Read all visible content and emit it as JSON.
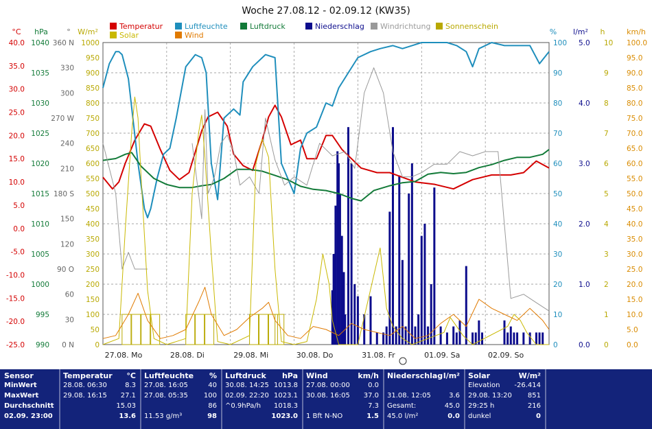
{
  "title": "Woche 27.08.12 - 02.09.12 (KW35)",
  "colors": {
    "temperature": "#d40000",
    "humidity": "#1e8ebc",
    "pressure": "#127a38",
    "rain": "#0c0c8c",
    "wind_dir": "#9a9a9a",
    "sunshine": "#b8a800",
    "solar": "#c9b800",
    "wind": "#e07a00"
  },
  "legend": [
    {
      "label": "Temperatur",
      "color": "#d40000"
    },
    {
      "label": "Luftfeuchte",
      "color": "#1e8ebc"
    },
    {
      "label": "Luftdruck",
      "color": "#127a38"
    },
    {
      "label": "Niederschlag",
      "color": "#0c0c8c"
    },
    {
      "label": "Windrichtung",
      "color": "#9a9a9a"
    },
    {
      "label": "Sonnenschein",
      "color": "#b8a800"
    },
    {
      "label": "Solar",
      "color": "#c9b800"
    },
    {
      "label": "Wind",
      "color": "#e07a00"
    }
  ],
  "axes": {
    "temp_unit": "°C",
    "pressure_unit": "hPa",
    "dir_unit": "°",
    "solar_unit": "W/m²",
    "hum_unit": "%",
    "rain_unit": "l/m²",
    "sun_unit": "h",
    "wind_unit": "km/h",
    "temp_ticks": [
      "40.0",
      "35.0",
      "30.0",
      "25.0",
      "20.0",
      "15.0",
      "10.0",
      "5.0",
      "0.0",
      "-5.0",
      "-10.0",
      "-15.0",
      "-20.0",
      "-25.0"
    ],
    "pressure_ticks": [
      "1040",
      "1035",
      "1030",
      "1025",
      "1020",
      "1015",
      "1010",
      "1005",
      "1000",
      "995",
      "990"
    ],
    "dir_ticks": [
      "360 N",
      "330",
      "300",
      "270 W",
      "240",
      "210",
      "180 S",
      "150",
      "120",
      "90 O",
      "60",
      "30",
      "0 N"
    ],
    "solar_ticks": [
      "1000",
      "950",
      "900",
      "850",
      "800",
      "750",
      "700",
      "650",
      "600",
      "550",
      "500",
      "450",
      "400",
      "350",
      "300",
      "250",
      "200",
      "150",
      "100",
      "50",
      "0"
    ],
    "hum_ticks": [
      "100",
      "90",
      "80",
      "70",
      "60",
      "50",
      "40",
      "30",
      "20",
      "10",
      "0"
    ],
    "rain_ticks": [
      "5.0",
      "4.0",
      "3.0",
      "2.0",
      "1.0",
      "0.0"
    ],
    "sun_ticks": [
      "10",
      "9",
      "8",
      "7",
      "6",
      "5",
      "4",
      "3",
      "2",
      "1",
      "0"
    ],
    "wind_ticks": [
      "100.0",
      "95.0",
      "90.0",
      "85.0",
      "80.0",
      "75.0",
      "70.0",
      "65.0",
      "60.0",
      "55.0",
      "50.0",
      "45.0",
      "40.0",
      "35.0",
      "30.0",
      "25.0",
      "20.0",
      "15.0",
      "10.0",
      "5.0",
      "0.0"
    ],
    "day_labels": [
      "27.08.  Mo",
      "28.08.  Di",
      "29.08.  Mi",
      "30.08.  Do",
      "31.08.  Fr",
      "01.09.  Sa",
      "02.09.  So"
    ]
  },
  "chart_data": {
    "type": "line",
    "x_unit": "days since 27.08.12 00:00",
    "x_range": [
      0,
      7
    ],
    "series": [
      {
        "name": "Temperatur",
        "axis": "°C",
        "ylim": [
          -25,
          40
        ],
        "x": [
          0,
          0.15,
          0.25,
          0.35,
          0.5,
          0.65,
          0.75,
          0.9,
          1.05,
          1.2,
          1.35,
          1.55,
          1.65,
          1.8,
          1.95,
          2.05,
          2.2,
          2.35,
          2.5,
          2.6,
          2.7,
          2.8,
          2.95,
          3.1,
          3.2,
          3.35,
          3.5,
          3.6,
          3.75,
          3.9,
          4.05,
          4.3,
          4.5,
          4.9,
          5.2,
          5.5,
          5.8,
          6.1,
          6.4,
          6.6,
          6.8,
          7
        ],
        "y": [
          11,
          8.5,
          10,
          14,
          19,
          22.5,
          22,
          17,
          12.5,
          10.5,
          12,
          21,
          24,
          25,
          22,
          16,
          13.5,
          12.5,
          19,
          24,
          26.5,
          24,
          18,
          19,
          15,
          15,
          20,
          20,
          17,
          15,
          13,
          12,
          12,
          10,
          9.5,
          8.5,
          10.5,
          11.5,
          11.5,
          12,
          14.5,
          13
        ]
      },
      {
        "name": "Luftfeuchte",
        "axis": "%",
        "ylim": [
          0,
          100
        ],
        "x": [
          0,
          0.1,
          0.2,
          0.25,
          0.3,
          0.4,
          0.55,
          0.65,
          0.7,
          0.75,
          0.85,
          0.95,
          1.05,
          1.15,
          1.3,
          1.45,
          1.55,
          1.62,
          1.7,
          1.8,
          1.9,
          2.05,
          2.15,
          2.2,
          2.35,
          2.55,
          2.7,
          2.8,
          2.9,
          3.0,
          3.1,
          3.2,
          3.35,
          3.5,
          3.6,
          3.7,
          3.85,
          4.0,
          4.2,
          4.35,
          4.55,
          4.7,
          4.85,
          5.0,
          5.2,
          5.4,
          5.55,
          5.7,
          5.8,
          5.9,
          6.1,
          6.3,
          6.5,
          6.7,
          6.85,
          7
        ],
        "y": [
          85,
          93,
          97,
          97,
          96,
          88,
          60,
          45,
          42,
          45,
          55,
          63,
          65,
          75,
          92,
          96,
          95,
          90,
          60,
          48,
          75,
          78,
          76,
          87,
          92,
          96,
          95,
          60,
          55,
          50,
          65,
          70,
          72,
          80,
          79,
          85,
          90,
          95,
          97,
          98,
          99,
          98,
          99,
          100,
          100,
          100,
          99,
          97,
          92,
          98,
          100,
          99,
          99,
          99,
          93,
          97
        ]
      },
      {
        "name": "Luftdruck",
        "axis": "hPa",
        "ylim": [
          990,
          1040
        ],
        "x": [
          0,
          0.2,
          0.35,
          0.45,
          0.6,
          0.8,
          1.0,
          1.2,
          1.4,
          1.55,
          1.7,
          1.9,
          2.1,
          2.3,
          2.5,
          2.7,
          2.9,
          3.1,
          3.3,
          3.5,
          3.7,
          3.9,
          4.05,
          4.25,
          4.5,
          4.7,
          4.9,
          5.1,
          5.3,
          5.5,
          5.7,
          5.9,
          6.1,
          6.3,
          6.5,
          6.7,
          6.9,
          7
        ],
        "y": [
          1020.5,
          1020.8,
          1021.5,
          1021.8,
          1019.5,
          1017.5,
          1016.5,
          1016,
          1016,
          1016.3,
          1016.5,
          1017.5,
          1019,
          1019,
          1018.7,
          1018,
          1017.3,
          1016.2,
          1015.7,
          1015.5,
          1015,
          1014.2,
          1013.8,
          1015.5,
          1016.3,
          1016.8,
          1017,
          1018.2,
          1018.5,
          1018.3,
          1018.5,
          1019.3,
          1019.8,
          1020.5,
          1021,
          1021,
          1021.5,
          1022.3
        ]
      },
      {
        "name": "Windrichtung",
        "axis": "°",
        "ylim": [
          0,
          360
        ],
        "x": [
          0,
          0.1,
          0.2,
          0.3,
          0.4,
          0.5,
          0.7,
          0.8,
          0.9,
          1.2,
          1.4,
          1.55,
          1.6,
          1.65,
          1.75,
          1.85,
          1.95,
          2.05,
          2.15,
          2.3,
          2.45,
          2.55,
          2.7,
          2.85,
          3.0,
          3.2,
          3.4,
          3.6,
          3.8,
          3.95,
          4.1,
          4.25,
          4.4,
          4.55,
          4.7,
          4.85,
          5.0,
          5.2,
          5.4,
          5.6,
          5.8,
          6.0,
          6.2,
          6.4,
          6.6,
          6.8,
          7
        ],
        "y": [
          240,
          210,
          180,
          90,
          110,
          90,
          90,
          null,
          null,
          null,
          240,
          150,
          280,
          180,
          200,
          240,
          250,
          230,
          190,
          200,
          180,
          270,
          220,
          190,
          200,
          190,
          240,
          225,
          230,
          210,
          300,
          330,
          300,
          230,
          200,
          200,
          205,
          215,
          215,
          230,
          225,
          230,
          230,
          55,
          60,
          50,
          40
        ]
      },
      {
        "name": "Sonnenschein",
        "axis": "h",
        "ylim": [
          0,
          10
        ],
        "x": [
          0.3,
          0.45,
          0.6,
          0.75,
          1.3,
          1.45,
          1.6,
          2.3,
          2.45,
          2.6,
          2.7
        ],
        "y": [
          1,
          1,
          1,
          1,
          1,
          1,
          1,
          1,
          1,
          1,
          1
        ]
      },
      {
        "name": "Solar",
        "axis": "W/m²",
        "ylim": [
          0,
          1000
        ],
        "x": [
          0,
          0.25,
          0.35,
          0.45,
          0.5,
          0.55,
          0.6,
          0.7,
          0.8,
          1.0,
          1.3,
          1.4,
          1.5,
          1.55,
          1.6,
          1.7,
          1.8,
          2.0,
          2.3,
          2.4,
          2.5,
          2.55,
          2.6,
          2.7,
          2.8,
          3.0,
          3.2,
          3.35,
          3.45,
          3.55,
          3.6,
          3.7,
          4.0,
          4.35,
          4.45,
          4.55,
          4.7,
          4.85,
          5.35,
          5.45,
          5.55,
          5.65,
          5.8,
          6.35,
          6.45,
          6.55,
          6.65,
          6.8,
          7
        ],
        "y": [
          0,
          20,
          380,
          700,
          820,
          750,
          550,
          180,
          20,
          0,
          20,
          500,
          700,
          760,
          620,
          300,
          10,
          0,
          30,
          600,
          680,
          651,
          620,
          250,
          10,
          0,
          10,
          150,
          300,
          200,
          80,
          0,
          0,
          320,
          120,
          60,
          20,
          0,
          40,
          90,
          60,
          30,
          0,
          60,
          100,
          80,
          40,
          0,
          0
        ]
      },
      {
        "name": "Wind",
        "axis": "km/h",
        "ylim": [
          0,
          100
        ],
        "x": [
          0,
          0.2,
          0.4,
          0.55,
          0.7,
          0.9,
          1.1,
          1.3,
          1.5,
          1.6,
          1.7,
          1.9,
          2.1,
          2.3,
          2.5,
          2.6,
          2.7,
          2.9,
          3.1,
          3.3,
          3.5,
          3.7,
          3.9,
          4.1,
          4.3,
          4.5,
          4.7,
          4.9,
          5.1,
          5.3,
          5.5,
          5.7,
          5.9,
          6.1,
          6.3,
          6.5,
          6.7,
          6.9,
          7
        ],
        "y": [
          2,
          3,
          10,
          17,
          8,
          2,
          3,
          5,
          14,
          19,
          10,
          3,
          5,
          9,
          12,
          14,
          8,
          3,
          2,
          6,
          5,
          3,
          7,
          5,
          4,
          3,
          6,
          2,
          3,
          7,
          10,
          6,
          15,
          12,
          10,
          8,
          12,
          8,
          5
        ]
      }
    ],
    "rain": {
      "name": "Niederschlag",
      "axis": "l/m²",
      "ylim": [
        0,
        5
      ],
      "x": [
        3.6,
        3.62,
        3.65,
        3.68,
        3.7,
        3.72,
        3.75,
        3.78,
        3.8,
        3.85,
        3.9,
        3.95,
        4.0,
        4.1,
        4.2,
        4.3,
        4.4,
        4.45,
        4.5,
        4.55,
        4.6,
        4.65,
        4.7,
        4.75,
        4.8,
        4.85,
        4.9,
        4.95,
        5.0,
        5.05,
        5.1,
        5.15,
        5.2,
        5.3,
        5.4,
        5.5,
        5.55,
        5.6,
        5.7,
        5.8,
        5.85,
        5.9,
        5.95,
        6.3,
        6.35,
        6.4,
        6.45,
        6.5,
        6.6,
        6.7,
        6.8,
        6.85,
        6.9
      ],
      "y": [
        0.9,
        1.5,
        2.3,
        3.2,
        3.0,
        2.5,
        1.8,
        1.2,
        0.5,
        3.6,
        3.0,
        1.0,
        0.8,
        0.5,
        0.8,
        0.2,
        0.2,
        0.3,
        2.2,
        3.6,
        0.3,
        2.8,
        1.4,
        0.3,
        2.5,
        3.0,
        0.3,
        0.5,
        1.8,
        2.0,
        0.3,
        1.0,
        2.6,
        0.3,
        0.2,
        0.3,
        0.2,
        0.4,
        1.3,
        0.2,
        0.2,
        0.4,
        0.2,
        0.4,
        0.2,
        0.3,
        0.2,
        0.2,
        0.2,
        0.2,
        0.2,
        0.2,
        0.2
      ]
    }
  },
  "stats": {
    "sensor": {
      "title": "Sensor",
      "row1": "MinWert",
      "row2": "MaxWert",
      "row3": "Durchschnitt",
      "row4": "02.09.  23:00"
    },
    "temp": {
      "title": "Temperatur",
      "unit": "°C",
      "r1a": "28.08.  06:30",
      "r1b": "8.3",
      "r2a": "29.08.  16:15",
      "r2b": "27.1",
      "r3": "15.03",
      "r4": "13.6"
    },
    "hum": {
      "title": "Luftfeuchte",
      "unit": "%",
      "r1a": "27.08.  16:05",
      "r1b": "40",
      "r2a": "27.08.  05:35",
      "r2b": "100",
      "r3": "86",
      "r4a": "11.53 g/m³",
      "r4b": "98"
    },
    "press": {
      "title": "Luftdruck",
      "unit": "hPa",
      "r1a": "30.08.  14:25",
      "r1b": "1013.8",
      "r2a": "02.09.  22:20",
      "r2b": "1023.1",
      "r3a": "^0.9hPa/h",
      "r3b": "1018.3",
      "r4": "1023.0"
    },
    "wind": {
      "title": "Wind",
      "unit": "km/h",
      "r1a": "27.08.  00:00",
      "r1b": "0.0",
      "r2a": "30.08.  16:05",
      "r2b": "37.0",
      "r3": "7.3",
      "r4a": "1 Bft N-NO",
      "r4b": "1.5"
    },
    "rain": {
      "title": "Niederschlag",
      "unit": "l/m²",
      "r2a": "31.08.  12:05",
      "r2b": "3.6",
      "r3a": "Gesamt:",
      "r3b": "45.0",
      "r4a": "45.0 l/m²",
      "r4b": "0.0"
    },
    "solar": {
      "title": "Solar",
      "unit": "W/m²",
      "r1a": "Elevation",
      "r1b": "-26.414",
      "r2a": "29.08.  13:20",
      "r2b": "851",
      "r3a": "29:25 h",
      "r3b": "216",
      "r4a": "dunkel",
      "r4b": "0"
    }
  }
}
